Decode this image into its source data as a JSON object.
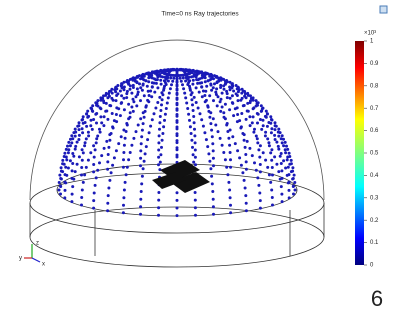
{
  "plot": {
    "title": "Time=0 ns  Ray trajectories",
    "axis_labels": {
      "x": "x",
      "y": "y",
      "z": "z"
    },
    "colorbar": {
      "multiplier": "×10³",
      "lim": [
        0,
        1
      ],
      "ticks": [
        0,
        0.1,
        0.2,
        0.3,
        0.4,
        0.5,
        0.6,
        0.7,
        0.8,
        0.9,
        1
      ]
    }
  },
  "page_number": "6"
}
